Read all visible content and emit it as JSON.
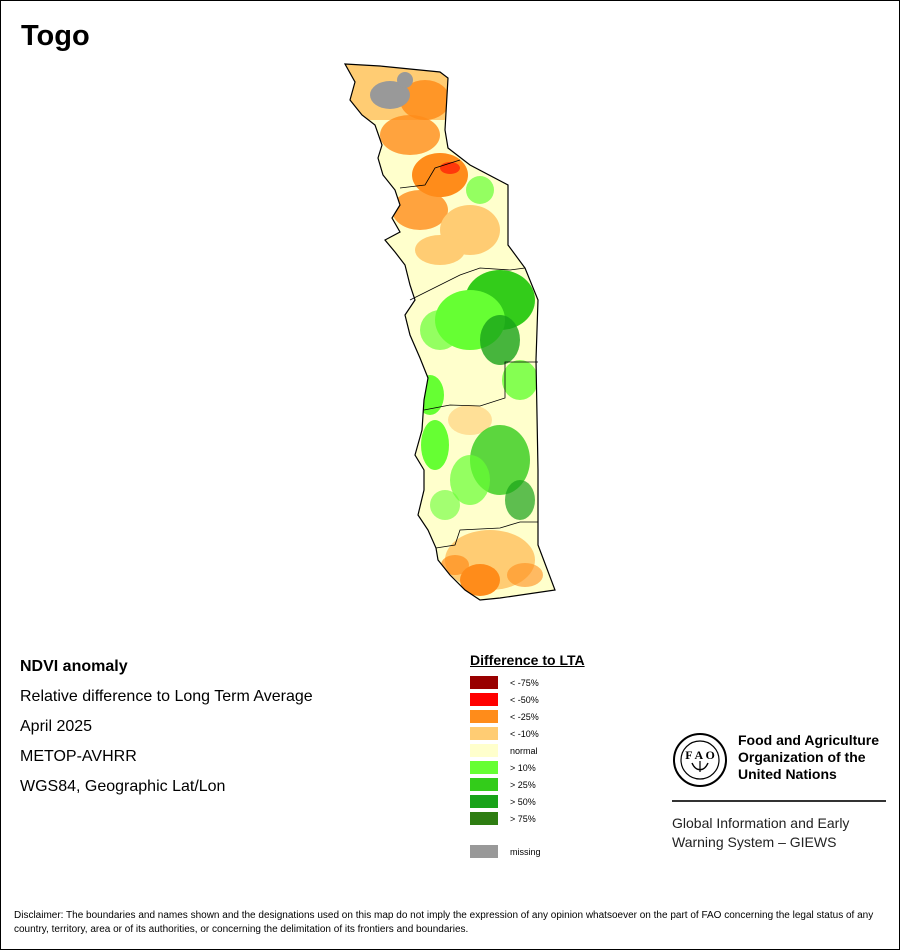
{
  "map": {
    "title": "Togo"
  },
  "info": {
    "line1": "NDVI anomaly",
    "line2": "Relative difference to Long Term Average",
    "line3": "April 2025",
    "line4": "METOP-AVHRR",
    "line5": "WGS84, Geographic Lat/Lon"
  },
  "legend": {
    "title": "Difference to LTA",
    "items": [
      {
        "label": "< -75%",
        "color": "#990000"
      },
      {
        "label": "< -50%",
        "color": "#ff0000"
      },
      {
        "label": "< -25%",
        "color": "#ff8c1a"
      },
      {
        "label": "< -10%",
        "color": "#ffcc73"
      },
      {
        "label": "normal",
        "color": "#ffffcc"
      },
      {
        "label": "> 10%",
        "color": "#66ff33"
      },
      {
        "label": "> 25%",
        "color": "#33cc1a"
      },
      {
        "label": "> 50%",
        "color": "#19a319"
      },
      {
        "label": "> 75%",
        "color": "#2e7d12"
      }
    ],
    "missing": {
      "label": "missing",
      "color": "#999999"
    }
  },
  "logo": {
    "org_line1": "Food and Agriculture",
    "org_line2": "Organization of the",
    "org_line3": "United Nations",
    "seal_text": "FIAT PANIS",
    "giews_line1": "Global Information and Early",
    "giews_line2": "Warning System – GIEWS"
  },
  "disclaimer": "Disclaimer: The boundaries and names shown and the designations used on this map do not imply the expression of any opinion whatsoever on the part of FAO concerning the legal status of any country, territory, area or of its authorities, or concerning the delimitation of its frontiers and boundaries."
}
